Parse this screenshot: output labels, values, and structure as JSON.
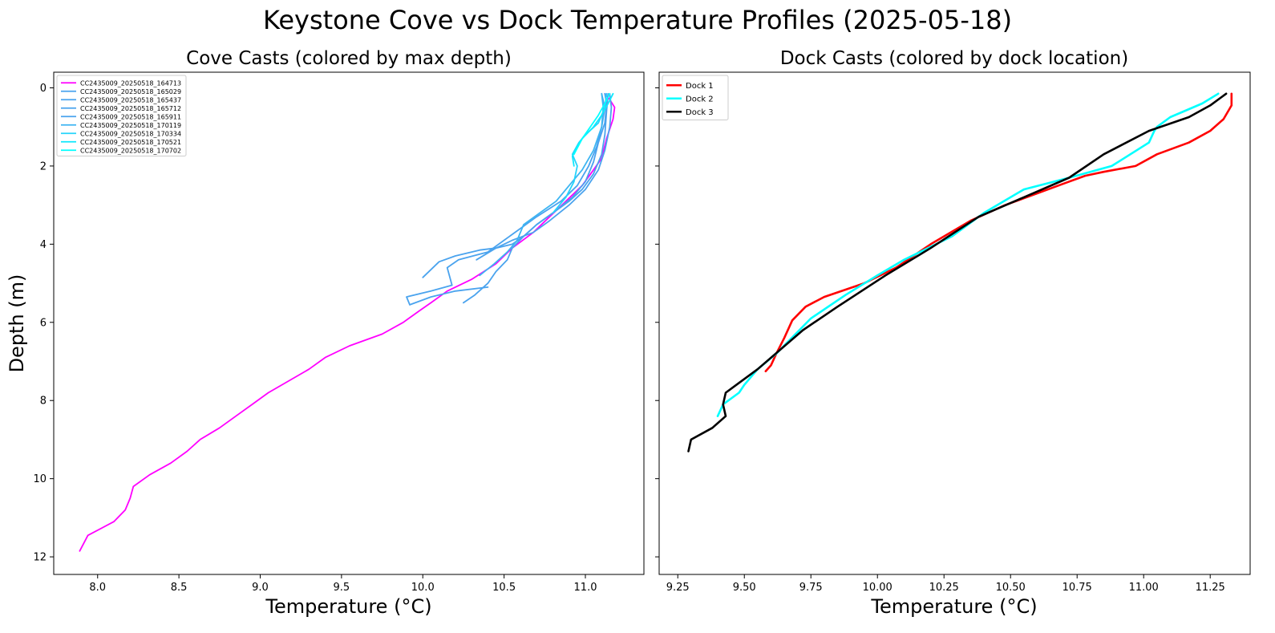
{
  "figure": {
    "title": "Keystone Cove vs Dock Temperature Profiles (2025-05-18)"
  },
  "chart_data": [
    {
      "type": "line",
      "title": "Cove Casts (colored by max depth)",
      "xlabel": "Temperature (°C)",
      "ylabel": "Depth (m)",
      "xlim": [
        7.73,
        11.36
      ],
      "ylim": [
        12.45,
        -0.4
      ],
      "y_inverted": true,
      "xticks": [
        "8.0",
        "8.5",
        "9.0",
        "9.5",
        "10.0",
        "10.5",
        "11.0"
      ],
      "xtick_values": [
        8.0,
        8.5,
        9.0,
        9.5,
        10.0,
        10.5,
        11.0
      ],
      "yticks": [
        "0",
        "2",
        "4",
        "6",
        "8",
        "10",
        "12"
      ],
      "ytick_values": [
        0,
        2,
        4,
        6,
        8,
        10,
        12
      ],
      "legend": "upper-left",
      "grid": false,
      "series": [
        {
          "name": "CC2435009_20250518_164713",
          "color": "#ff00ff",
          "x": [
            11.12,
            11.15,
            11.18,
            11.17,
            11.13,
            11.1,
            11.05,
            10.98,
            10.88,
            10.78,
            10.68,
            10.55,
            10.45,
            10.3,
            10.15,
            10.05,
            9.98,
            9.88,
            9.75,
            9.55,
            9.4,
            9.3,
            9.05,
            8.95,
            8.85,
            8.75,
            8.63,
            8.55,
            8.45,
            8.32,
            8.22,
            8.2,
            8.17,
            8.1,
            7.94,
            7.89
          ],
          "y": [
            0.15,
            0.3,
            0.5,
            0.8,
            1.3,
            1.8,
            2.1,
            2.5,
            2.9,
            3.3,
            3.7,
            4.1,
            4.5,
            4.9,
            5.2,
            5.5,
            5.7,
            6.0,
            6.3,
            6.6,
            6.9,
            7.2,
            7.8,
            8.1,
            8.4,
            8.7,
            9.0,
            9.3,
            9.6,
            9.9,
            10.2,
            10.5,
            10.8,
            11.1,
            11.45,
            11.85
          ]
        },
        {
          "name": "CC2435009_20250518_165029",
          "color": "#4aa3ee",
          "x": [
            11.12,
            11.13,
            11.12,
            11.08,
            11.05,
            11.0,
            10.92,
            10.8,
            10.7,
            10.62,
            10.55,
            10.45,
            10.35,
            10.2,
            10.1,
            10.0
          ],
          "y": [
            0.15,
            0.4,
            0.9,
            1.4,
            1.9,
            2.4,
            2.8,
            3.2,
            3.5,
            3.8,
            4.0,
            4.1,
            4.15,
            4.3,
            4.45,
            4.85
          ]
        },
        {
          "name": "CC2435009_20250518_165437",
          "color": "#4aa3ee",
          "x": [
            11.1,
            11.12,
            11.1,
            11.07,
            11.02,
            10.95,
            10.85,
            10.7,
            10.6,
            10.5,
            10.4,
            10.22,
            10.15,
            10.18,
            10.05,
            9.9,
            9.92,
            10.05,
            10.2,
            10.4
          ],
          "y": [
            0.15,
            0.5,
            1.0,
            1.5,
            2.0,
            2.5,
            2.9,
            3.3,
            3.6,
            3.9,
            4.2,
            4.4,
            4.6,
            5.05,
            5.2,
            5.35,
            5.55,
            5.35,
            5.2,
            5.1
          ]
        },
        {
          "name": "CC2435009_20250518_165712",
          "color": "#4aa3ee",
          "x": [
            11.15,
            11.16,
            11.15,
            11.12,
            11.08,
            11.0,
            10.9,
            10.78,
            10.68,
            10.55,
            10.45,
            10.33
          ],
          "y": [
            0.15,
            0.5,
            1.0,
            1.6,
            2.1,
            2.6,
            3.0,
            3.4,
            3.7,
            3.9,
            4.1,
            4.4
          ]
        },
        {
          "name": "CC2435009_20250518_165911",
          "color": "#4aa3ee",
          "x": [
            11.14,
            11.13,
            11.12,
            11.1,
            11.05,
            10.98,
            10.9,
            10.8,
            10.7,
            10.62,
            10.55,
            10.52,
            10.45,
            10.4,
            10.32,
            10.25
          ],
          "y": [
            0.15,
            0.6,
            1.2,
            1.7,
            2.2,
            2.6,
            2.9,
            3.2,
            3.5,
            3.8,
            4.1,
            4.4,
            4.7,
            5.0,
            5.3,
            5.5
          ]
        },
        {
          "name": "CC2435009_20250518_170119",
          "color": "#3db5f2",
          "x": [
            11.1,
            11.11,
            11.1,
            11.05,
            10.98,
            10.9,
            10.82,
            10.72,
            10.62,
            10.58,
            10.52,
            10.44,
            10.35
          ],
          "y": [
            0.15,
            0.5,
            1.0,
            1.6,
            2.1,
            2.5,
            2.9,
            3.2,
            3.5,
            3.9,
            4.2,
            4.5,
            4.8
          ]
        },
        {
          "name": "CC2435009_20250518_170334",
          "color": "#26d4fb",
          "x": [
            11.13,
            11.12,
            11.08,
            11.0,
            10.96,
            10.92,
            10.95,
            10.93,
            10.88,
            10.8
          ],
          "y": [
            0.15,
            0.5,
            0.9,
            1.2,
            1.4,
            1.7,
            2.0,
            2.4,
            2.8,
            3.2
          ]
        },
        {
          "name": "CC2435009_20250518_170521",
          "color": "#0ee8fd",
          "x": [
            11.17,
            11.14,
            11.1,
            11.05,
            10.98,
            10.95,
            10.92,
            10.93
          ],
          "y": [
            0.15,
            0.4,
            0.7,
            1.0,
            1.3,
            1.5,
            1.75,
            2.0
          ]
        },
        {
          "name": "CC2435009_20250518_170702",
          "color": "#00ffff",
          "x": [
            11.15,
            11.12,
            11.08,
            11.03,
            10.98,
            10.93
          ],
          "y": [
            0.15,
            0.4,
            0.7,
            1.0,
            1.3,
            1.7
          ]
        }
      ]
    },
    {
      "type": "line",
      "title": "Dock Casts (colored by dock location)",
      "xlabel": "Temperature (°C)",
      "ylabel": "",
      "xlim": [
        9.18,
        11.4
      ],
      "ylim": [
        12.45,
        -0.4
      ],
      "y_inverted": true,
      "xticks": [
        "9.25",
        "9.50",
        "9.75",
        "10.00",
        "10.25",
        "10.50",
        "10.75",
        "11.00",
        "11.25"
      ],
      "xtick_values": [
        9.25,
        9.5,
        9.75,
        10.0,
        10.25,
        10.5,
        10.75,
        11.0,
        11.25
      ],
      "ytick_values": [
        0,
        2,
        4,
        6,
        8,
        10,
        12
      ],
      "legend": "upper-left",
      "grid": false,
      "series": [
        {
          "name": "Dock 1",
          "color": "#ff0000",
          "x": [
            11.33,
            11.33,
            11.3,
            11.25,
            11.17,
            11.05,
            10.97,
            10.85,
            10.78,
            10.7,
            10.6,
            10.48,
            10.35,
            10.2,
            10.07,
            9.95,
            9.8,
            9.73,
            9.68,
            9.65,
            9.62,
            9.6,
            9.58
          ],
          "y": [
            0.15,
            0.45,
            0.8,
            1.1,
            1.4,
            1.7,
            2.0,
            2.15,
            2.25,
            2.45,
            2.7,
            3.0,
            3.4,
            4.0,
            4.6,
            5.0,
            5.35,
            5.6,
            5.95,
            6.4,
            6.8,
            7.1,
            7.25
          ]
        },
        {
          "name": "Dock 2",
          "color": "#00ffff",
          "x": [
            11.28,
            11.22,
            11.1,
            11.05,
            11.04,
            11.02,
            10.95,
            10.88,
            10.72,
            10.55,
            10.4,
            10.28,
            10.1,
            10.0,
            9.88,
            9.75,
            9.62,
            9.55,
            9.5,
            9.48,
            9.42,
            9.4
          ],
          "y": [
            0.15,
            0.4,
            0.75,
            1.0,
            1.1,
            1.4,
            1.7,
            2.0,
            2.3,
            2.6,
            3.2,
            3.8,
            4.4,
            4.8,
            5.3,
            5.9,
            6.8,
            7.2,
            7.6,
            7.8,
            8.1,
            8.4
          ]
        },
        {
          "name": "Dock 3",
          "color": "#000000",
          "x": [
            11.31,
            11.25,
            11.17,
            11.02,
            10.85,
            10.72,
            10.55,
            10.38,
            10.2,
            10.03,
            9.85,
            9.72,
            9.55,
            9.47,
            9.43,
            9.42,
            9.43,
            9.38,
            9.3,
            9.29
          ],
          "y": [
            0.15,
            0.45,
            0.75,
            1.1,
            1.7,
            2.3,
            2.8,
            3.3,
            4.1,
            4.8,
            5.6,
            6.2,
            7.2,
            7.6,
            7.8,
            8.1,
            8.4,
            8.7,
            9.0,
            9.3
          ]
        }
      ]
    }
  ]
}
